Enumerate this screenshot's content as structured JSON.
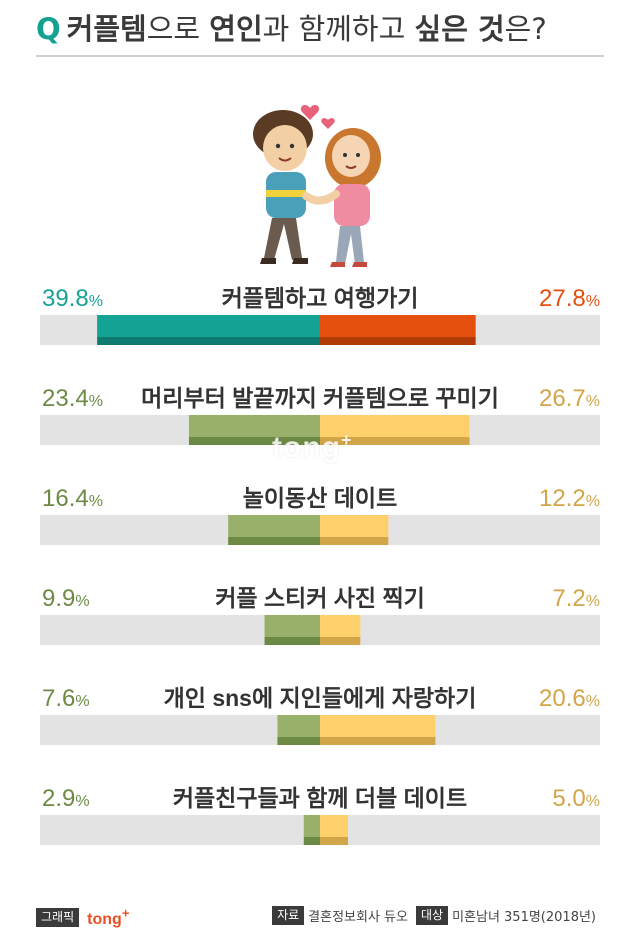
{
  "title": {
    "q": "Q",
    "part1": "커플템",
    "part2": "으로 ",
    "part3": "연인",
    "part4": "과 함께하고 ",
    "part5": "싶은 것",
    "part6": "은?"
  },
  "watermark": "tong",
  "watermark_sup": "+",
  "colors": {
    "teal": "#14a394",
    "teal_dark": "#0e7a70",
    "orange": "#e5500f",
    "orange_dark": "#b23c08",
    "green": "#98b06a",
    "green_dark": "#6d8a45",
    "yellow": "#fdd06c",
    "yellow_dark": "#d2a548",
    "track": "#e3e3e3"
  },
  "chart_data": {
    "type": "bar",
    "orientation": "horizontal-diverging",
    "max_value": 50,
    "unit": "%",
    "items": [
      {
        "label": "커플템하고 여행가기",
        "left": 39.8,
        "right": 27.8,
        "left_text": "39.8",
        "right_text": "27.8"
      },
      {
        "label": "머리부터 발끝까지 커플템으로 꾸미기",
        "left": 23.4,
        "right": 26.7,
        "left_text": "23.4",
        "right_text": "26.7"
      },
      {
        "label": "놀이동산 데이트",
        "left": 16.4,
        "right": 12.2,
        "left_text": "16.4",
        "right_text": "12.2"
      },
      {
        "label": "커플 스티커 사진 찍기",
        "left": 9.9,
        "right": 7.2,
        "left_text": "9.9",
        "right_text": "7.2"
      },
      {
        "label": "개인 sns에 지인들에게 자랑하기",
        "left": 7.6,
        "right": 20.6,
        "left_text": "7.6",
        "right_text": "20.6"
      },
      {
        "label": "커플친구들과 함께 더블 데이트",
        "left": 2.9,
        "right": 5.0,
        "left_text": "2.9",
        "right_text": "5.0"
      }
    ]
  },
  "footer": {
    "graphic_label": "그래픽",
    "brand": "tong",
    "brand_sup": "+",
    "source_label": "자료",
    "source_value": "결혼정보회사 듀오",
    "target_label": "대상",
    "target_value": "미혼남녀 351명(2018년)"
  }
}
